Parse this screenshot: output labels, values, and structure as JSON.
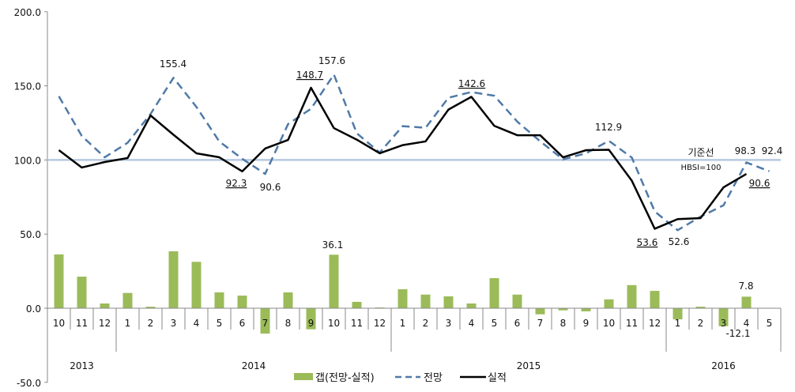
{
  "chart_data": {
    "type": "bar+line",
    "title": "",
    "xlabel": "",
    "ylabel": "",
    "ylim": [
      -50,
      200
    ],
    "yticks": [
      "200.0",
      "150.0",
      "100.0",
      "50.0",
      "0.0",
      "-50.0"
    ],
    "ytick_values": [
      200,
      150,
      100,
      50,
      0,
      -50
    ],
    "grid": false,
    "legend_position": "bottom",
    "years": [
      {
        "label": "2013",
        "months": 3
      },
      {
        "label": "2014",
        "months": 12
      },
      {
        "label": "2015",
        "months": 12
      },
      {
        "label": "2016",
        "months": 5
      }
    ],
    "categories": [
      "10",
      "11",
      "12",
      "1",
      "2",
      "3",
      "4",
      "5",
      "6",
      "7",
      "8",
      "9",
      "10",
      "11",
      "12",
      "1",
      "2",
      "3",
      "4",
      "5",
      "6",
      "7",
      "8",
      "9",
      "10",
      "11",
      "12",
      "1",
      "2",
      "3",
      "4",
      "5"
    ],
    "series": [
      {
        "name": "갭(전망-실적)",
        "kind": "bar",
        "color": "#9bbb59",
        "values": [
          36.3,
          21.3,
          3.2,
          10.3,
          1.0,
          38.4,
          31.3,
          10.7,
          8.5,
          -17.1,
          10.7,
          -14.2,
          36.1,
          4.3,
          0.5,
          12.8,
          9.2,
          8.0,
          3.2,
          20.3,
          9.2,
          -4.1,
          -1.4,
          -2.1,
          6.0,
          15.6,
          11.7,
          -7.5,
          1.0,
          -12.1,
          7.8,
          null
        ]
      },
      {
        "name": "전망",
        "kind": "line-dashed",
        "color": "#4f7aa6",
        "values": [
          142.9,
          116.2,
          101.8,
          111.6,
          131.0,
          155.4,
          135.8,
          112.5,
          100.8,
          90.6,
          124.2,
          134.5,
          157.6,
          118.0,
          105.0,
          122.8,
          121.7,
          142.0,
          145.8,
          143.3,
          125.9,
          112.6,
          100.4,
          104.5,
          112.9,
          101.6,
          65.3,
          52.6,
          61.8,
          69.4,
          98.3,
          92.4
        ]
      },
      {
        "name": "실적",
        "kind": "line",
        "color": "#000000",
        "values": [
          106.6,
          94.9,
          98.6,
          101.3,
          130.0,
          117.0,
          104.5,
          101.8,
          92.3,
          107.7,
          113.5,
          148.7,
          121.5,
          113.7,
          104.5,
          110.0,
          112.5,
          134.0,
          142.6,
          123.0,
          116.7,
          116.7,
          101.8,
          106.6,
          106.9,
          86.0,
          53.6,
          60.1,
          60.8,
          81.5,
          90.6,
          null
        ]
      }
    ],
    "reference_line": {
      "value": 100,
      "color": "#b7c9e0",
      "label": "기준선",
      "sublabel": "HBSI=100"
    },
    "annotations": [
      {
        "text": "155.4",
        "series": "전망",
        "index": 5,
        "underline": false
      },
      {
        "text": "148.7",
        "series": "실적",
        "index": 11,
        "underline": true
      },
      {
        "text": "157.6",
        "series": "전망",
        "index": 12,
        "underline": false
      },
      {
        "text": "92.3",
        "series": "실적",
        "index": 8,
        "underline": true
      },
      {
        "text": "90.6",
        "series": "전망",
        "index": 9,
        "underline": false
      },
      {
        "text": "142.6",
        "series": "실적",
        "index": 18,
        "underline": true
      },
      {
        "text": "112.9",
        "series": "전망",
        "index": 24,
        "underline": false
      },
      {
        "text": "53.6",
        "series": "실적",
        "index": 26,
        "underline": true
      },
      {
        "text": "52.6",
        "series": "전망",
        "index": 27,
        "underline": false
      },
      {
        "text": "98.3",
        "series": "전망",
        "index": 30,
        "underline": false
      },
      {
        "text": "92.4",
        "series": "전망",
        "index": 31,
        "underline": false
      },
      {
        "text": "90.6",
        "series": "실적",
        "index": 30,
        "underline": true
      },
      {
        "text": "36.1",
        "series": "갭(전망-실적)",
        "index": 12,
        "underline": false
      },
      {
        "text": "7.8",
        "series": "갭(전망-실적)",
        "index": 30,
        "underline": false
      },
      {
        "text": "-12.1",
        "series": "갭(전망-실적)",
        "index": 29,
        "underline": false
      }
    ]
  }
}
